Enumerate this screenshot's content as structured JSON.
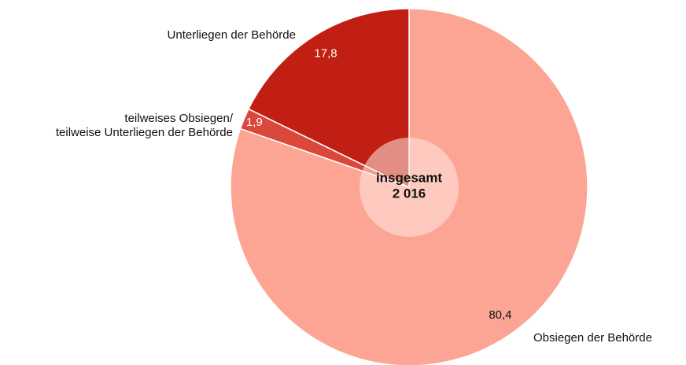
{
  "chart_data": {
    "type": "pie",
    "categories": [
      "Obsiegen der Behörde",
      "teilweises Obsiegen/\nteilweise Unterliegen der Behörde",
      "Unterliegen der Behörde"
    ],
    "values": [
      80.4,
      1.9,
      17.8
    ],
    "value_labels": [
      "80,4",
      "1,9",
      "17,8"
    ],
    "colors": [
      "#fca594",
      "#d9483b",
      "#c11f13"
    ],
    "center_text": [
      "insgesamt",
      "2 016"
    ]
  }
}
